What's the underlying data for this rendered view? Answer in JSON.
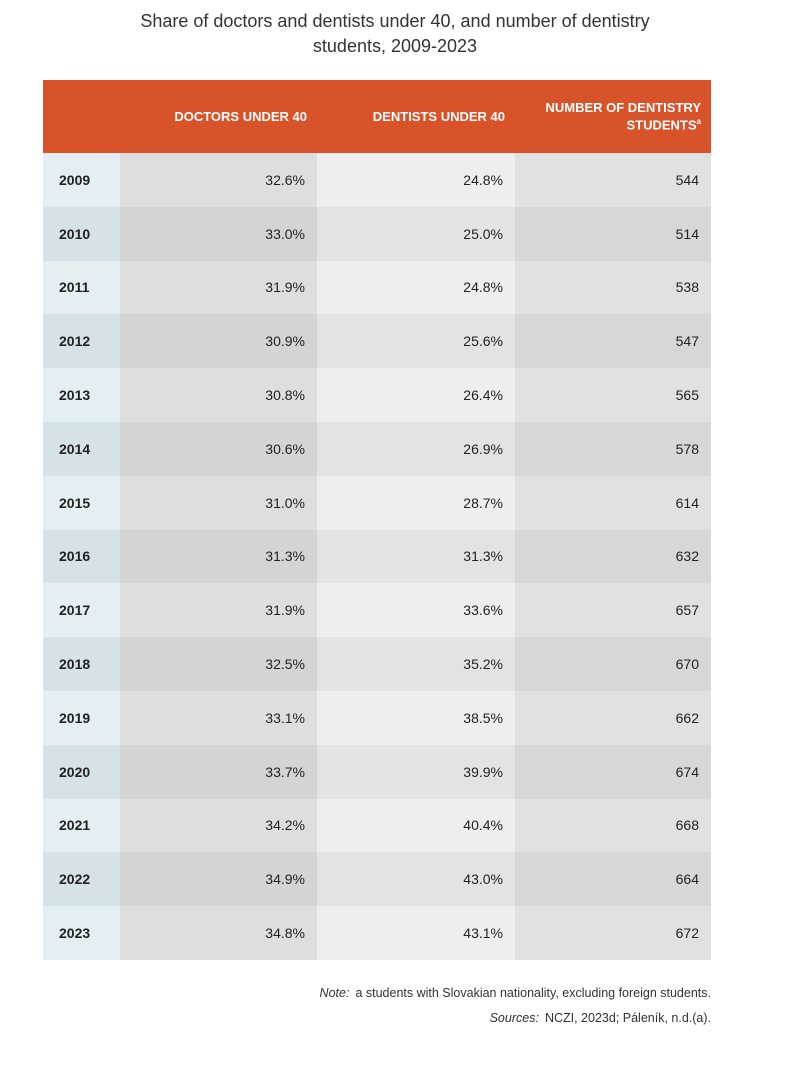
{
  "title": [
    "Share of doctors and dentists under 40, and number of dentistry",
    "students, 2009-2023"
  ],
  "table": {
    "headers": [
      "DOCTORS UNDER 40",
      "DENTISTS UNDER 40",
      "NUMBER OF DENTISTRY STUDENTS"
    ],
    "header_marker": "a",
    "rows": [
      [
        "2009",
        "32.6%",
        "24.8%",
        "544"
      ],
      [
        "2010",
        "33.0%",
        "25.0%",
        "514"
      ],
      [
        "2011",
        "31.9%",
        "24.8%",
        "538"
      ],
      [
        "2012",
        "30.9%",
        "25.6%",
        "547"
      ],
      [
        "2013",
        "30.8%",
        "26.4%",
        "565"
      ],
      [
        "2014",
        "30.6%",
        "26.9%",
        "578"
      ],
      [
        "2015",
        "31.0%",
        "28.7%",
        "614"
      ],
      [
        "2016",
        "31.3%",
        "31.3%",
        "632"
      ],
      [
        "2017",
        "31.9%",
        "33.6%",
        "657"
      ],
      [
        "2018",
        "32.5%",
        "35.2%",
        "670"
      ],
      [
        "2019",
        "33.1%",
        "38.5%",
        "662"
      ],
      [
        "2020",
        "33.7%",
        "39.9%",
        "674"
      ],
      [
        "2021",
        "34.2%",
        "40.4%",
        "668"
      ],
      [
        "2022",
        "34.9%",
        "43.0%",
        "664"
      ],
      [
        "2023",
        "34.8%",
        "43.1%",
        "672"
      ]
    ]
  },
  "note": {
    "label": "Note:",
    "marker": "a",
    "text": "students with Slovakian nationality, excluding foreign students."
  },
  "sources": {
    "label": "Sources:",
    "text": "NCZI, 2023d; Páleník, n.d.(a)."
  }
}
